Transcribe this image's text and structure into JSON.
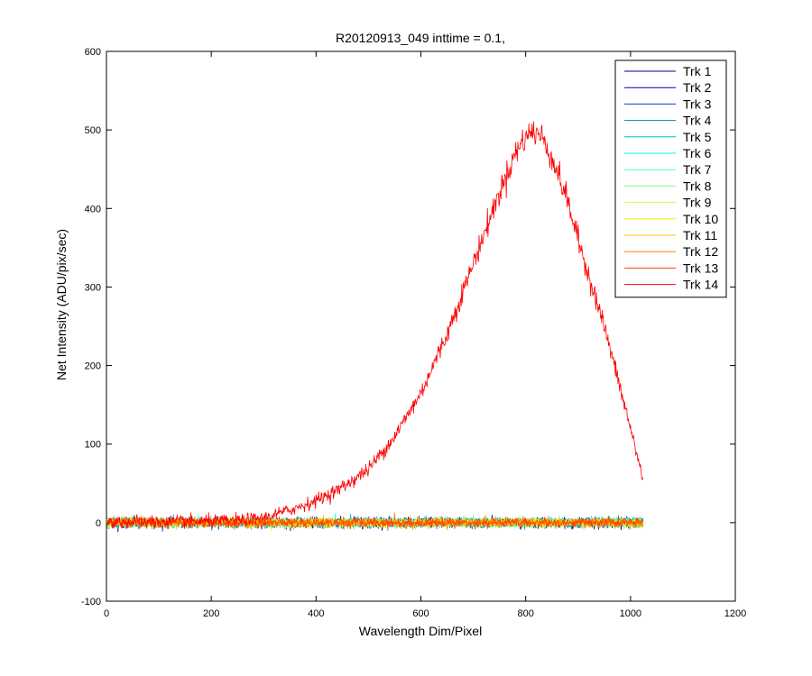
{
  "chart_data": {
    "type": "line",
    "title": "R20120913_049 inttime = 0.1,",
    "xlabel": "Wavelength Dim/Pixel",
    "ylabel": "Net Intensity (ADU/pix/sec)",
    "xlim": [
      0,
      1200
    ],
    "ylim": [
      -100,
      600
    ],
    "xticks": [
      0,
      200,
      400,
      600,
      800,
      1000,
      1200
    ],
    "yticks": [
      -100,
      0,
      100,
      200,
      300,
      400,
      500,
      600
    ],
    "grid": false,
    "legend_position": "top-right",
    "x_range_of_data": [
      1,
      1024
    ],
    "series": [
      {
        "name": "Trk 1",
        "color": "#00008F",
        "profile": "flat",
        "noise": 3
      },
      {
        "name": "Trk 2",
        "color": "#0000BF",
        "profile": "flat",
        "noise": 3
      },
      {
        "name": "Trk 3",
        "color": "#0040C0",
        "profile": "flat",
        "noise": 3
      },
      {
        "name": "Trk 4",
        "color": "#0080BF",
        "profile": "flat",
        "noise": 3
      },
      {
        "name": "Trk 5",
        "color": "#00BFBF",
        "profile": "flat",
        "noise": 3
      },
      {
        "name": "Trk 6",
        "color": "#10EFEF",
        "profile": "flat",
        "noise": 3
      },
      {
        "name": "Trk 7",
        "color": "#40FFDF",
        "profile": "flat",
        "noise": 3
      },
      {
        "name": "Trk 8",
        "color": "#80FF80",
        "profile": "flat",
        "noise": 3
      },
      {
        "name": "Trk 9",
        "color": "#C0FF40",
        "profile": "flat",
        "noise": 3
      },
      {
        "name": "Trk 10",
        "color": "#EFEF00",
        "profile": "flat",
        "noise": 3
      },
      {
        "name": "Trk 11",
        "color": "#FFBF00",
        "profile": "flat",
        "noise": 3
      },
      {
        "name": "Trk 12",
        "color": "#FF8000",
        "profile": "flat",
        "noise": 3
      },
      {
        "name": "Trk 13",
        "color": "#FF4000",
        "profile": "flat",
        "noise": 3
      },
      {
        "name": "Trk 14",
        "color": "#FF0000",
        "profile": "peak",
        "noise": 4,
        "key_points": [
          [
            0,
            1
          ],
          [
            100,
            1
          ],
          [
            200,
            2
          ],
          [
            250,
            3
          ],
          [
            300,
            6
          ],
          [
            350,
            16
          ],
          [
            400,
            28
          ],
          [
            450,
            45
          ],
          [
            500,
            68
          ],
          [
            550,
            110
          ],
          [
            600,
            165
          ],
          [
            650,
            240
          ],
          [
            700,
            330
          ],
          [
            750,
            420
          ],
          [
            780,
            470
          ],
          [
            800,
            492
          ],
          [
            815,
            498
          ],
          [
            830,
            492
          ],
          [
            850,
            465
          ],
          [
            880,
            410
          ],
          [
            900,
            360
          ],
          [
            950,
            250
          ],
          [
            1000,
            120
          ],
          [
            1024,
            55
          ]
        ]
      }
    ]
  }
}
